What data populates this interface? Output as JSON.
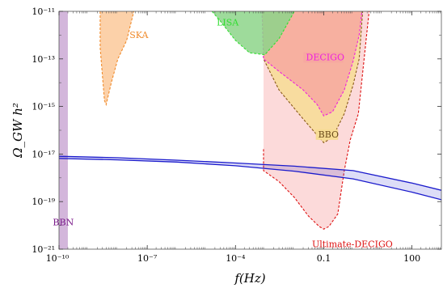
{
  "chart_data": {
    "type": "area",
    "title": "",
    "xlabel": "f(Hz)",
    "ylabel": "Ω_GW h²",
    "xscale": "log",
    "yscale": "log",
    "xlim": [
      1e-10,
      1000
    ],
    "ylim": [
      1e-21,
      1e-11
    ],
    "grid": false,
    "legend": "none",
    "x_ticks": [
      {
        "value": 1e-10,
        "label": "10⁻¹⁰"
      },
      {
        "value": 1e-07,
        "label": "10⁻⁷"
      },
      {
        "value": 0.0001,
        "label": "10⁻⁴"
      },
      {
        "value": 0.1,
        "label": "0.1"
      },
      {
        "value": 100,
        "label": "100"
      }
    ],
    "y_ticks": [
      {
        "value": 1e-11,
        "label": "10⁻¹¹"
      },
      {
        "value": 1e-13,
        "label": "10⁻¹³"
      },
      {
        "value": 1e-15,
        "label": "10⁻¹⁵"
      },
      {
        "value": 1e-17,
        "label": "10⁻¹⁷"
      },
      {
        "value": 1e-19,
        "label": "10⁻¹⁹"
      },
      {
        "value": 1e-21,
        "label": "10⁻²¹"
      }
    ],
    "regions": [
      {
        "name": "Ultimate-DECIGO",
        "fill": "#fbd3d3",
        "stroke": "#dd1111",
        "label_at": [
          0.04,
          1.2e-21
        ],
        "points": [
          [
            0.0009,
            1.6e-17
          ],
          [
            0.0009,
            2e-18
          ],
          [
            0.003,
            7e-19
          ],
          [
            0.01,
            1.5e-19
          ],
          [
            0.03,
            2.5e-20
          ],
          [
            0.07,
            9e-21
          ],
          [
            0.1,
            7e-21
          ],
          [
            0.15,
            9e-21
          ],
          [
            0.3,
            3e-20
          ],
          [
            0.5,
            2e-18
          ],
          [
            0.8,
            4e-17
          ],
          [
            1.2,
            2e-16
          ],
          [
            1.5,
            5e-16
          ],
          [
            3.5,
            1e-11
          ]
        ]
      },
      {
        "name": "BBO",
        "fill": "#f7dc94",
        "stroke": "#8a5a1a",
        "label_at": [
          0.065,
          5e-17
        ],
        "points": [
          [
            0.0008,
            1e-11
          ],
          [
            0.0009,
            1e-13
          ],
          [
            0.003,
            5e-15
          ],
          [
            0.02,
            3e-16
          ],
          [
            0.05,
            8e-17
          ],
          [
            0.1,
            3e-17
          ],
          [
            0.2,
            5e-17
          ],
          [
            0.5,
            5e-16
          ],
          [
            1,
            8e-15
          ],
          [
            1.6,
            1e-13
          ],
          [
            2.1,
            1e-11
          ]
        ]
      },
      {
        "name": "DECIGO",
        "fill": "#f7a8a0",
        "stroke": "#ee22dd",
        "label_at": [
          0.025,
          8.8e-14
        ],
        "points": [
          [
            0.0008,
            1e-11
          ],
          [
            0.0009,
            1e-13
          ],
          [
            0.003,
            3e-14
          ],
          [
            0.02,
            5e-15
          ],
          [
            0.06,
            1.2e-15
          ],
          [
            0.1,
            4e-16
          ],
          [
            0.2,
            6e-16
          ],
          [
            0.5,
            5e-15
          ],
          [
            1,
            8e-14
          ],
          [
            1.6,
            1e-12
          ],
          [
            2.0,
            1e-11
          ]
        ]
      },
      {
        "name": "LISA",
        "fill": "#8dd58a",
        "stroke": "#33dd33",
        "label_at": [
          2.3e-05,
          2.5e-12
        ],
        "points": [
          [
            1.6e-05,
            1e-11
          ],
          [
            3e-05,
            4e-12
          ],
          [
            0.0001,
            6e-13
          ],
          [
            0.0003,
            1.8e-13
          ],
          [
            0.001,
            1.5e-13
          ],
          [
            0.003,
            7e-13
          ],
          [
            0.01,
            1e-11
          ]
        ]
      },
      {
        "name": "SKA",
        "fill": "#fbc99a",
        "stroke": "#f08a2a",
        "label_at": [
          2.5e-08,
          7.5e-13
        ],
        "points": [
          [
            2.5e-09,
            1e-11
          ],
          [
            2.5e-09,
            3e-13
          ],
          [
            3.5e-09,
            1.8e-15
          ],
          [
            4e-09,
            1.2e-15
          ],
          [
            6e-09,
            1e-14
          ],
          [
            1e-08,
            1e-13
          ],
          [
            2e-08,
            6e-13
          ],
          [
            3.5e-08,
            1e-11
          ]
        ]
      }
    ],
    "bands": [
      {
        "name": "BBN",
        "fill": "#c8a4d2",
        "x_range": [
          1e-10,
          2e-10
        ],
        "label_at": [
          1.4e-10,
          1e-20
        ]
      }
    ],
    "series": [
      {
        "name": "",
        "color": "#1a1acc",
        "upper": [
          [
            1e-10,
            8e-18
          ],
          [
            1e-08,
            7e-18
          ],
          [
            1e-06,
            5.5e-18
          ],
          [
            0.0001,
            4.2e-18
          ],
          [
            0.01,
            3.1e-18
          ],
          [
            1,
            2e-18
          ],
          [
            100,
            6e-19
          ],
          [
            1000,
            3e-19
          ]
        ],
        "lower": [
          [
            1e-10,
            6.5e-18
          ],
          [
            1e-08,
            5.7e-18
          ],
          [
            1e-06,
            4.6e-18
          ],
          [
            0.0001,
            3.2e-18
          ],
          [
            0.01,
            1.9e-18
          ],
          [
            1,
            9e-19
          ],
          [
            100,
            2.5e-19
          ],
          [
            1000,
            1.2e-19
          ]
        ]
      }
    ]
  }
}
